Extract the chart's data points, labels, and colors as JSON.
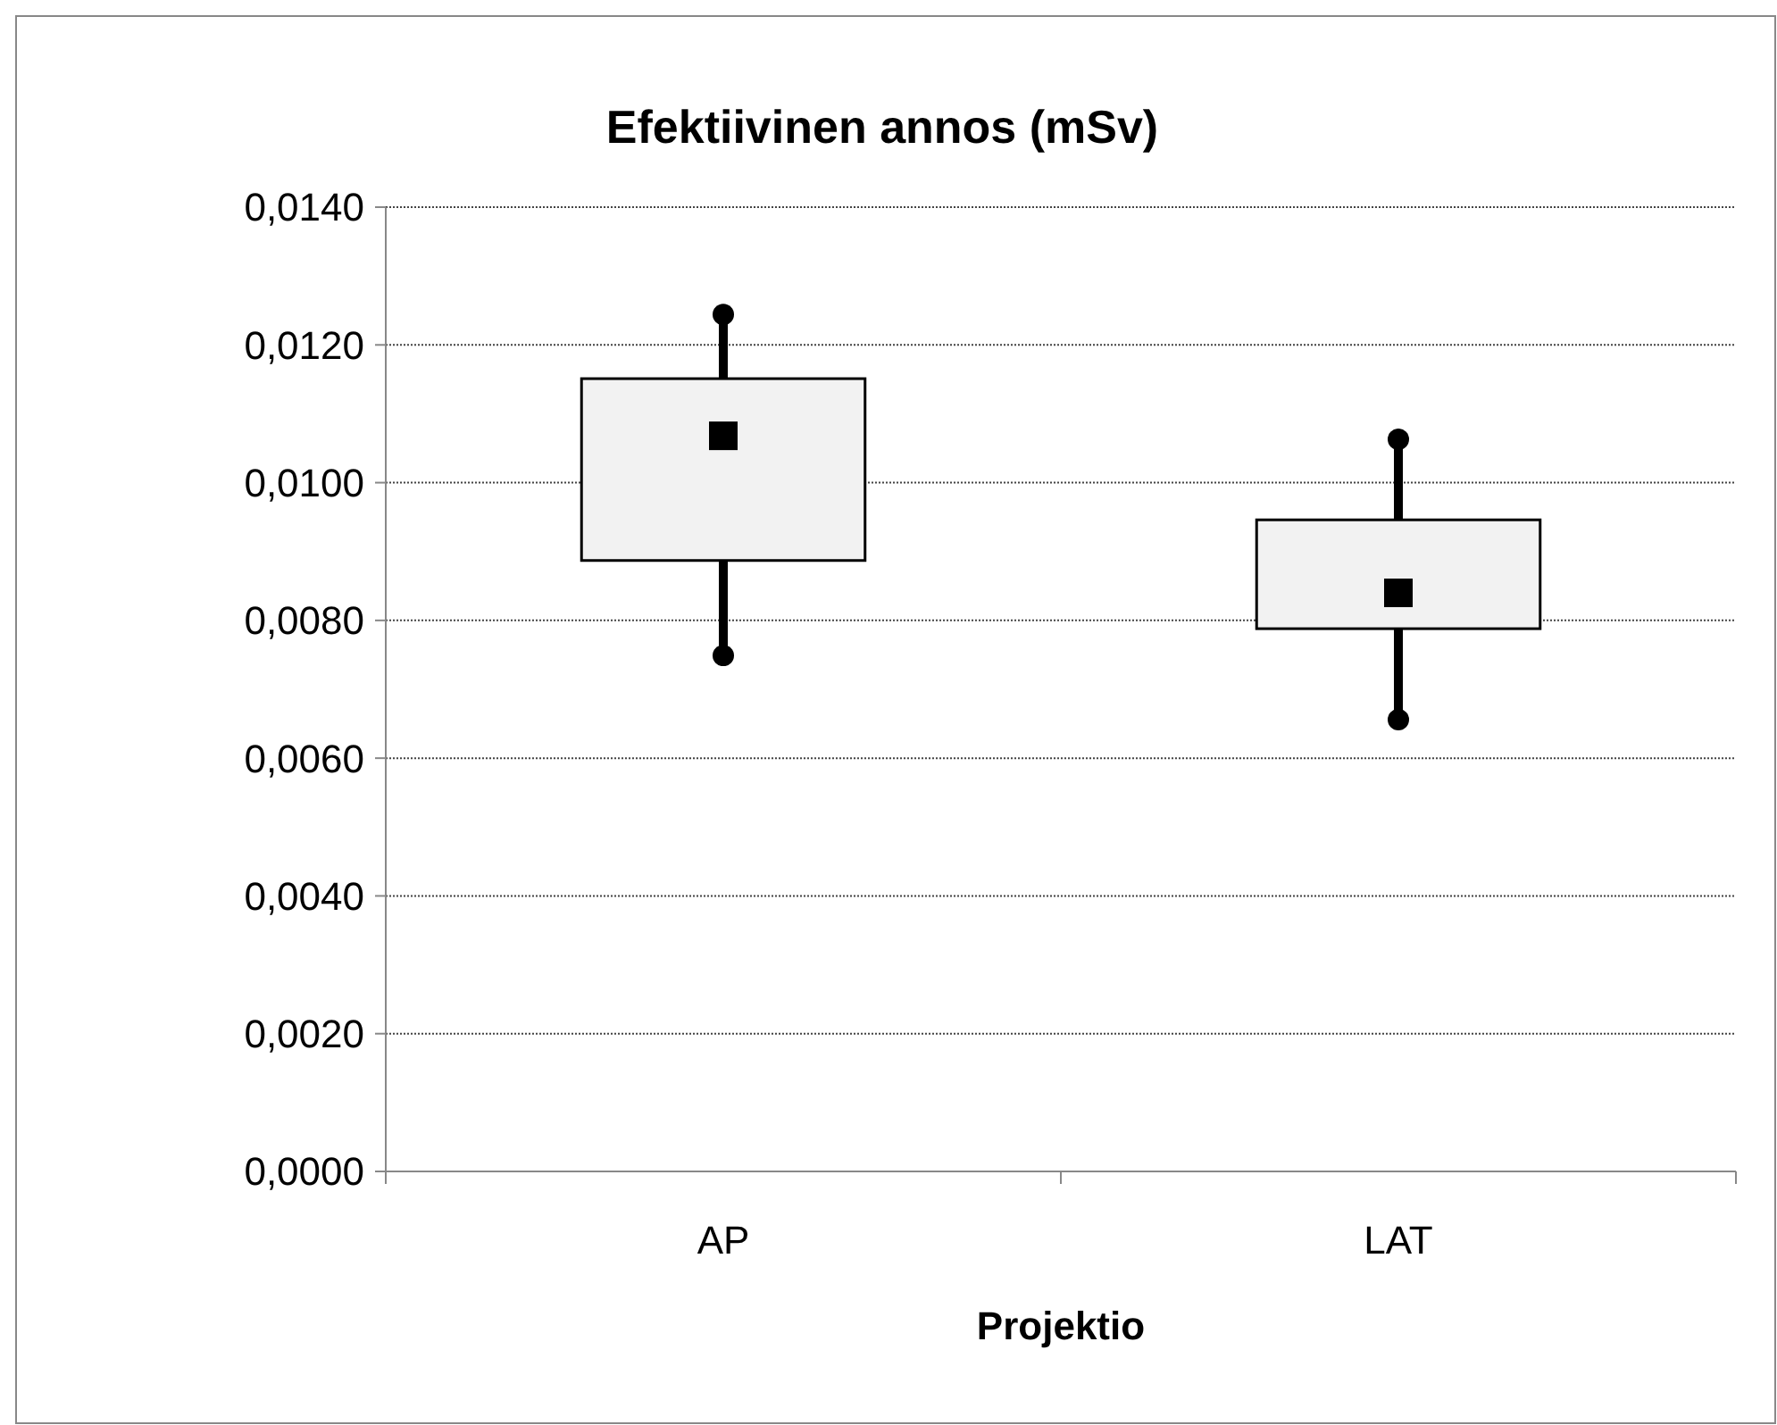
{
  "chart_data": {
    "type": "box",
    "title": "Efektiivinen annos (mSv)",
    "xlabel": "Projektio",
    "categories": [
      "AP",
      "LAT"
    ],
    "boxes": [
      {
        "low": 0.00749,
        "q1": 0.00887,
        "median": 0.01068,
        "q3": 0.01151,
        "high": 0.01244
      },
      {
        "low": 0.00656,
        "q1": 0.00788,
        "median": 0.0084,
        "q3": 0.00946,
        "high": 0.01063
      }
    ],
    "color": "#f2f2f2",
    "ylim": [
      0,
      0.014
    ],
    "yticks": [
      {
        "value": 0,
        "label": "0,0000"
      },
      {
        "value": 0.002,
        "label": "0,0020"
      },
      {
        "value": 0.004,
        "label": "0,0040"
      },
      {
        "value": 0.006,
        "label": "0,0060"
      },
      {
        "value": 0.008,
        "label": "0,0080"
      },
      {
        "value": 0.01,
        "label": "0,0100"
      },
      {
        "value": 0.012,
        "label": "0,0120"
      },
      {
        "value": 0.014,
        "label": "0,0140"
      }
    ],
    "grid": "y",
    "marker": "square"
  }
}
